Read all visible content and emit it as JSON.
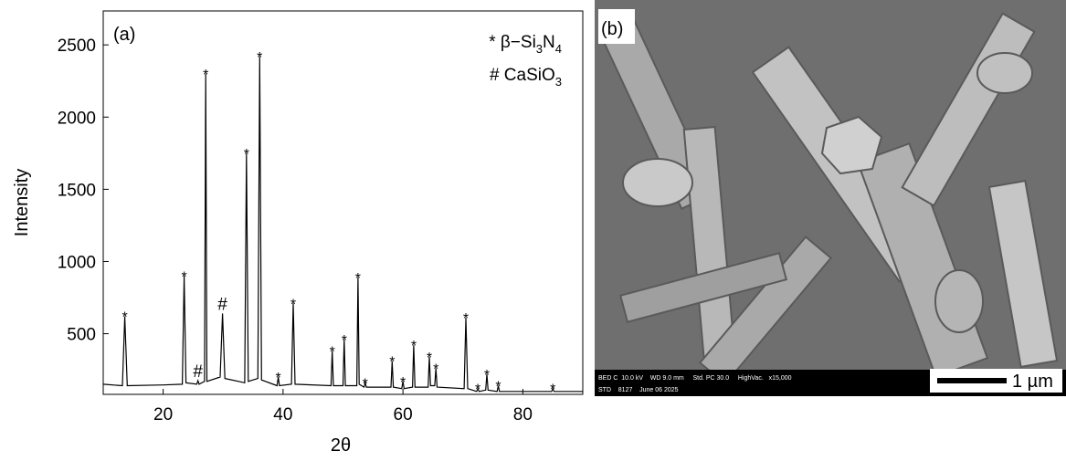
{
  "chart_data": {
    "type": "line",
    "panel_label": "(a)",
    "xlabel": "2θ",
    "ylabel": "Intensity",
    "xlim": [
      10,
      90
    ],
    "xticks": [
      20,
      40,
      60,
      80
    ],
    "ylim": [
      80,
      2735
    ],
    "yticks": [
      500,
      1000,
      1500,
      2000,
      2500
    ],
    "series": [
      {
        "color": "#000000",
        "x": [
          10,
          13.2,
          13.6,
          14.0,
          20,
          23.2,
          23.5,
          23.8,
          25.6,
          25.8,
          26.0,
          26.9,
          27.1,
          27.3,
          29.5,
          29.9,
          30.3,
          33.6,
          33.9,
          34.2,
          35.8,
          36.1,
          36.4,
          39.0,
          39.2,
          39.4,
          41.4,
          41.7,
          42.0,
          48.0,
          48.2,
          48.4,
          50.0,
          50.2,
          50.4,
          52.3,
          52.5,
          52.7,
          53.5,
          53.7,
          53.9,
          58.0,
          58.2,
          58.4,
          59.8,
          60.0,
          60.2,
          61.6,
          61.8,
          62.0,
          64.2,
          64.4,
          64.6,
          65.3,
          65.5,
          65.7,
          70.2,
          70.5,
          70.8,
          72.3,
          72.5,
          72.7,
          73.8,
          74.0,
          74.2,
          75.7,
          75.9,
          76.1,
          84.8,
          85.0,
          85.2,
          90
        ],
        "values": [
          150,
          140,
          620,
          140,
          145,
          150,
          900,
          160,
          150,
          175,
          150,
          170,
          2300,
          170,
          200,
          640,
          190,
          160,
          1750,
          170,
          190,
          2420,
          180,
          140,
          200,
          140,
          150,
          710,
          150,
          140,
          380,
          140,
          140,
          460,
          140,
          140,
          890,
          150,
          130,
          160,
          130,
          130,
          310,
          130,
          120,
          170,
          120,
          130,
          420,
          130,
          130,
          340,
          140,
          140,
          260,
          130,
          120,
          610,
          120,
          100,
          120,
          100,
          110,
          220,
          110,
          100,
          140,
          100,
          100,
          120,
          100,
          100
        ]
      }
    ],
    "peak_markers": [
      {
        "x": 13.6,
        "y": 620,
        "label": "*"
      },
      {
        "x": 23.5,
        "y": 900,
        "label": "*"
      },
      {
        "x": 25.8,
        "y": 175,
        "label": "#"
      },
      {
        "x": 27.1,
        "y": 2300,
        "label": "*"
      },
      {
        "x": 29.9,
        "y": 640,
        "label": "#"
      },
      {
        "x": 33.9,
        "y": 1750,
        "label": "*"
      },
      {
        "x": 36.1,
        "y": 2420,
        "label": "*"
      },
      {
        "x": 39.2,
        "y": 200,
        "label": "*"
      },
      {
        "x": 41.7,
        "y": 710,
        "label": "*"
      },
      {
        "x": 48.2,
        "y": 380,
        "label": "*"
      },
      {
        "x": 50.2,
        "y": 460,
        "label": "*"
      },
      {
        "x": 52.5,
        "y": 890,
        "label": "*"
      },
      {
        "x": 53.7,
        "y": 160,
        "label": "*"
      },
      {
        "x": 58.2,
        "y": 310,
        "label": "*"
      },
      {
        "x": 60.0,
        "y": 170,
        "label": "*"
      },
      {
        "x": 61.8,
        "y": 420,
        "label": "*"
      },
      {
        "x": 64.4,
        "y": 340,
        "label": "*"
      },
      {
        "x": 65.5,
        "y": 260,
        "label": "*"
      },
      {
        "x": 70.5,
        "y": 610,
        "label": "*"
      },
      {
        "x": 72.5,
        "y": 120,
        "label": "*"
      },
      {
        "x": 74.0,
        "y": 220,
        "label": "*"
      },
      {
        "x": 75.9,
        "y": 140,
        "label": "*"
      },
      {
        "x": 85.0,
        "y": 120,
        "label": "*"
      }
    ],
    "legend": [
      [
        "* β−Si",
        "3",
        "N",
        "4"
      ],
      [
        "# CaSiO",
        "3"
      ]
    ]
  },
  "image": {
    "label": "(b)",
    "info_line1": "BED C  10.0 kV    WD 9.0 mm     Std. PC 30.0     HighVac.   x15,000",
    "info_line2": "STD    8127    June 06 2025",
    "scale_bar": "1 µm"
  }
}
